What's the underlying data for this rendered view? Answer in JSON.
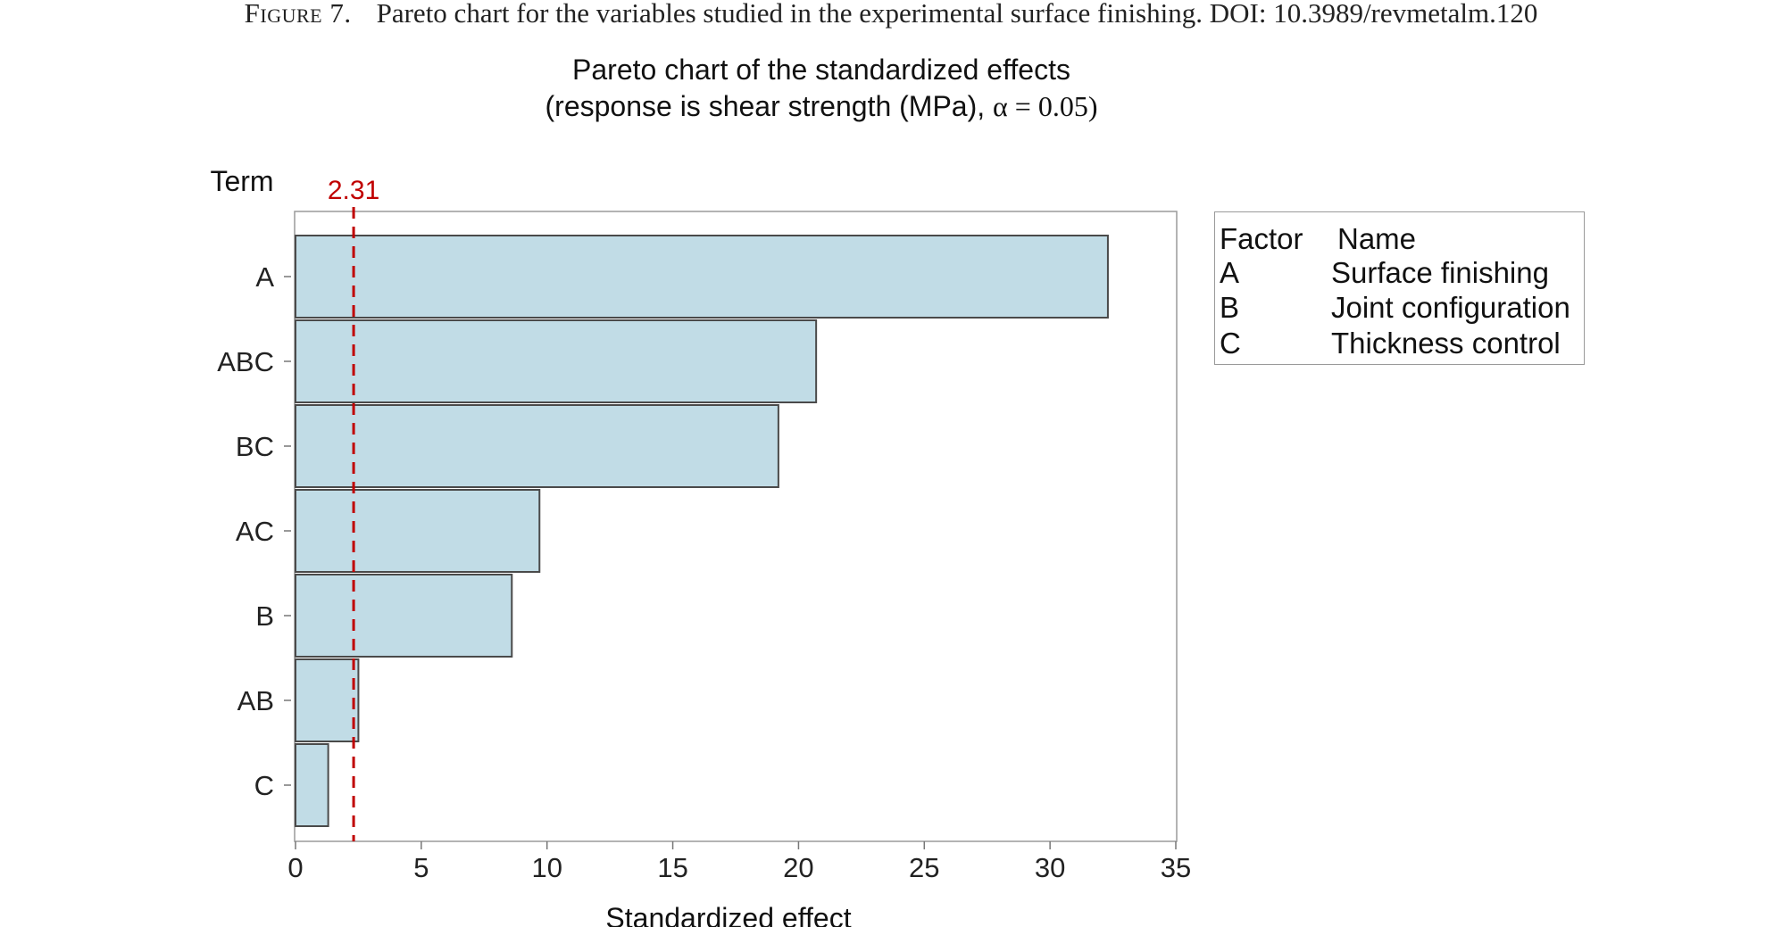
{
  "caption": {
    "label": "Figure 7.",
    "text": "Pareto chart for the variables studied in the experimental surface finishing. DOI: 10.3989/revmetalm.120"
  },
  "chart_data": {
    "type": "bar",
    "orientation": "horizontal",
    "title": "Pareto chart of the standardized effects",
    "subtitle_prefix": "(response is shear strength (MPa), ",
    "subtitle_alpha": "α = 0.05)",
    "ylabel": "Term",
    "xlabel": "Standardized effect",
    "categories": [
      "A",
      "ABC",
      "BC",
      "AC",
      "B",
      "AB",
      "C"
    ],
    "values": [
      32.3,
      20.7,
      19.2,
      9.7,
      8.6,
      2.5,
      1.3
    ],
    "xlim": [
      0,
      35
    ],
    "xticks": [
      0,
      5,
      10,
      15,
      20,
      25,
      30,
      35
    ],
    "reference_line": {
      "value": 2.31,
      "label": "2.31",
      "color": "#c00000",
      "style": "dashed"
    },
    "bar_color": "#c1dce6",
    "bar_edge_color": "#4a4a4a",
    "grid": false,
    "legend": {
      "placement": "right",
      "header": {
        "factor": "Factor",
        "name": "Name"
      },
      "rows": [
        {
          "factor": "A",
          "name": "Surface finishing"
        },
        {
          "factor": "B",
          "name": "Joint configuration"
        },
        {
          "factor": "C",
          "name": "Thickness control"
        }
      ]
    }
  }
}
